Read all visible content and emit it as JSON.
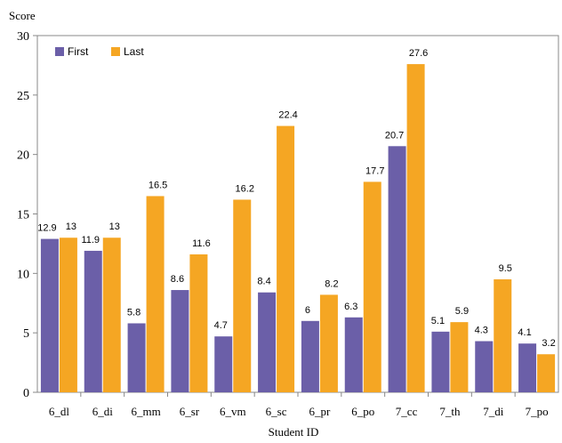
{
  "chart_data": {
    "type": "bar",
    "ylabel": "Score",
    "xlabel": "Student ID",
    "ylim": [
      0,
      30
    ],
    "yticks": [
      0,
      5,
      10,
      15,
      20,
      25,
      30
    ],
    "grid": false,
    "legend_position": "top-left",
    "categories": [
      "6_dl",
      "6_di",
      "6_mm",
      "6_sr",
      "6_vm",
      "6_sc",
      "6_pr",
      "6_po",
      "7_cc",
      "7_th",
      "7_di",
      "7_po"
    ],
    "series": [
      {
        "name": "First",
        "color": "#6b5fa8",
        "values": [
          12.9,
          11.9,
          5.8,
          8.6,
          4.7,
          8.4,
          6,
          6.3,
          20.7,
          5.1,
          4.3,
          4.1
        ],
        "labels": [
          "12.9",
          "11.9",
          "5.8",
          "8.6",
          "4.7",
          "8.4",
          "6",
          "6.3",
          "20.7",
          "5.1",
          "4.3",
          "4.1"
        ]
      },
      {
        "name": "Last",
        "color": "#f5a623",
        "values": [
          13,
          13,
          16.5,
          11.6,
          16.2,
          22.4,
          8.2,
          17.7,
          27.6,
          5.9,
          9.5,
          3.2
        ],
        "labels": [
          "13",
          "13",
          "16.5",
          "11.6",
          "16.2",
          "22.4",
          "8.2",
          "17.7",
          "27.6",
          "5.9",
          "9.5",
          "3.2"
        ]
      }
    ]
  }
}
